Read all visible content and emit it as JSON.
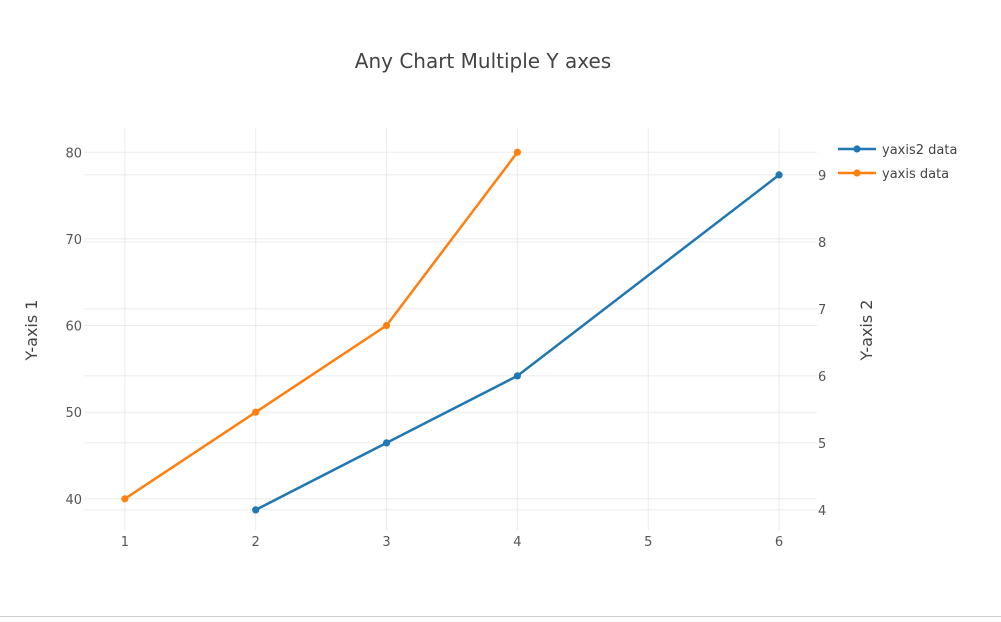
{
  "chart_data": {
    "type": "line",
    "title": "Any Chart Multiple Y axes",
    "xlabel": "",
    "ylabel": "Y-axis 1",
    "y2label": "Y-axis 2",
    "xlim": [
      0.81,
      6.29
    ],
    "ylim": [
      36.4,
      82.8
    ],
    "y2lim": [
      3.7,
      9.7
    ],
    "x_ticks": [
      1,
      2,
      3,
      4,
      5,
      6
    ],
    "y_ticks": [
      40,
      50,
      60,
      70,
      80
    ],
    "y2_ticks": [
      4,
      5,
      6,
      7,
      8,
      9
    ],
    "grid": true,
    "legend_position": "top-right",
    "series": [
      {
        "name": "yaxis2 data",
        "axis": "y2",
        "color": "#1f77b4",
        "x": [
          2,
          3,
          4,
          6
        ],
        "y": [
          4,
          5,
          6,
          9
        ]
      },
      {
        "name": "yaxis data",
        "axis": "y",
        "color": "#ff7f0e",
        "x": [
          1,
          2,
          3,
          4
        ],
        "y": [
          40,
          50,
          60,
          80
        ]
      }
    ]
  }
}
